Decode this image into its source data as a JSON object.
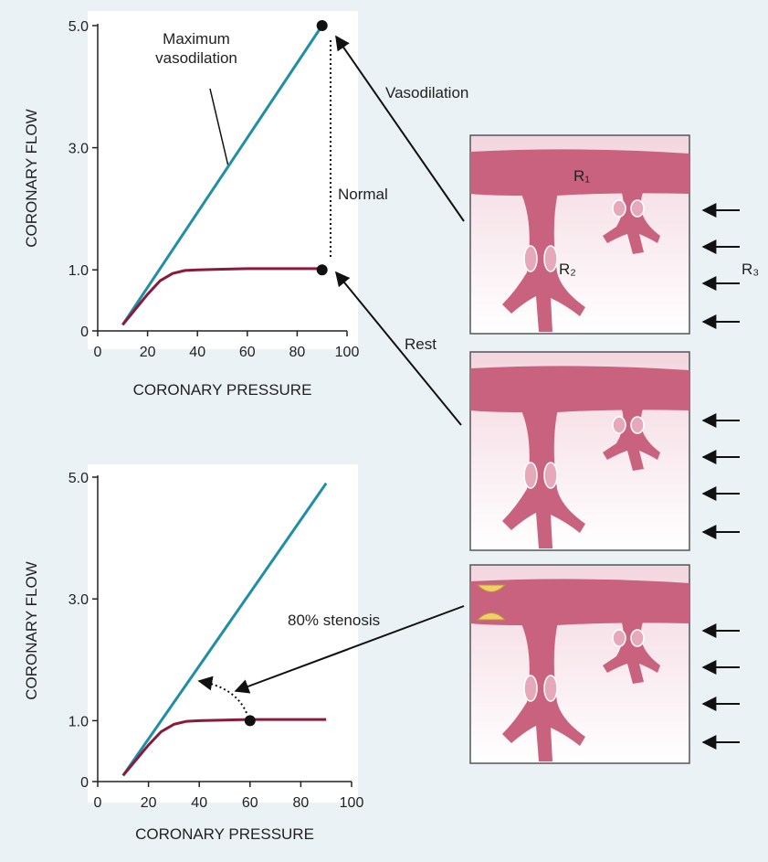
{
  "chart_data": [
    {
      "type": "line",
      "x_label": "CORONARY PRESSURE",
      "y_label": "CORONARY FLOW",
      "xlim": [
        0,
        100
      ],
      "ylim": [
        0,
        5
      ],
      "xticks": [
        0,
        20,
        40,
        60,
        80,
        100
      ],
      "yticks": [
        0,
        {
          "value": 1,
          "label": "1.0"
        },
        {
          "value": 3,
          "label": "3.0"
        },
        {
          "value": 5,
          "label": "5.0"
        }
      ],
      "series": [
        {
          "name": "Maximum vasodilation",
          "color": "#1f8fa6",
          "x": [
            10,
            90
          ],
          "values": [
            0.1,
            5.0
          ]
        },
        {
          "color": "#8b1a3a",
          "x": [
            10,
            15,
            20,
            25,
            30,
            35,
            40,
            50,
            60,
            70,
            80,
            90
          ],
          "values": [
            0.1,
            0.35,
            0.6,
            0.82,
            0.94,
            0.99,
            1.0,
            1.01,
            1.02,
            1.02,
            1.02,
            1.02
          ]
        }
      ],
      "points": {
        "color": "#111111",
        "x": [
          90,
          90
        ],
        "values": [
          5.0,
          1.0
        ]
      }
    },
    {
      "type": "line",
      "x_label": "CORONARY PRESSURE",
      "y_label": "CORONARY FLOW",
      "xlim": [
        0,
        100
      ],
      "ylim": [
        0,
        5
      ],
      "xticks": [
        0,
        20,
        40,
        60,
        80,
        100
      ],
      "yticks": [
        0,
        {
          "value": 1,
          "label": "1.0"
        },
        {
          "value": 3,
          "label": "3.0"
        },
        {
          "value": 5,
          "label": "5.0"
        }
      ],
      "series": [
        {
          "color": "#1f8fa6",
          "x": [
            10,
            90
          ],
          "values": [
            0.1,
            4.9
          ]
        },
        {
          "color": "#8b1a3a",
          "x": [
            10,
            15,
            20,
            25,
            30,
            35,
            40,
            50,
            60,
            70,
            80,
            90
          ],
          "values": [
            0.1,
            0.35,
            0.6,
            0.82,
            0.94,
            0.99,
            1.0,
            1.01,
            1.02,
            1.02,
            1.02,
            1.02
          ]
        }
      ],
      "points": {
        "color": "#111111",
        "x": [
          60
        ],
        "values": [
          1.0
        ]
      }
    }
  ],
  "labels": {
    "vasodilation": "Vasodilation",
    "normal": "Normal",
    "rest": "Rest",
    "stenosis": "80% stenosis"
  },
  "diagram": {
    "r1": "R₁",
    "r2": "R₂",
    "r3": "R₃"
  }
}
